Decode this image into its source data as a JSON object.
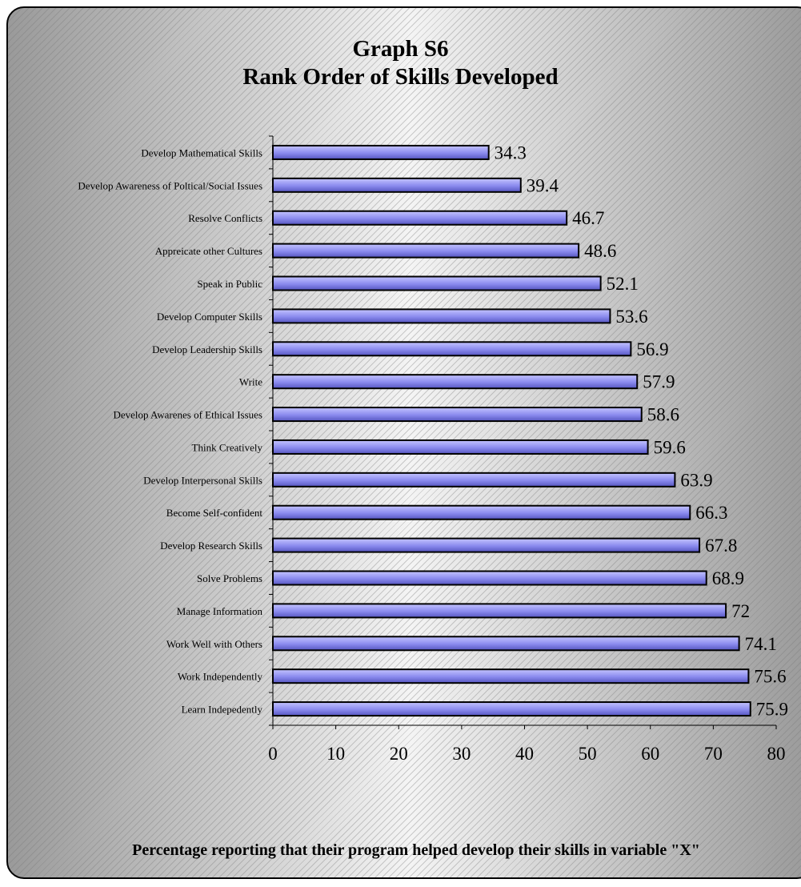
{
  "chart_data": {
    "type": "bar",
    "orientation": "horizontal",
    "title": "Graph S6",
    "subtitle": "Rank Order of Skills Developed",
    "xlabel": "Percentage reporting that their program helped develop their skills in  variable \"X\"",
    "ylabel": "",
    "xlim": [
      0,
      80
    ],
    "x_ticks": [
      0,
      10,
      20,
      30,
      40,
      50,
      60,
      70,
      80
    ],
    "grid": false,
    "legend": "none",
    "bar_color": "#8888ee",
    "categories": [
      "Develop Mathematical Skills",
      "Develop Awareness of Poltical/Social Issues",
      "Resolve Conflicts",
      "Appreicate other Cultures",
      "Speak in Public",
      "Develop Computer Skills",
      "Develop Leadership Skills",
      "Write",
      "Develop Awarenes of Ethical Issues",
      "Think Creatively",
      "Develop Interpersonal Skills",
      "Become Self-confident",
      "Develop Research Skills",
      "Solve Problems",
      "Manage Information",
      "Work Well with Others",
      "Work Independently",
      "Learn Indepedently"
    ],
    "values": [
      34.3,
      39.4,
      46.7,
      48.6,
      52.1,
      53.6,
      56.9,
      57.9,
      58.6,
      59.6,
      63.9,
      66.3,
      67.8,
      68.9,
      72,
      74.1,
      75.6,
      75.9
    ],
    "data_labels": [
      "34.3",
      "39.4",
      "46.7",
      "48.6",
      "52.1",
      "53.6",
      "56.9",
      "57.9",
      "58.6",
      "59.6",
      "63.9",
      "66.3",
      "67.8",
      "68.9",
      "72",
      "74.1",
      "75.6",
      "75.9"
    ]
  }
}
